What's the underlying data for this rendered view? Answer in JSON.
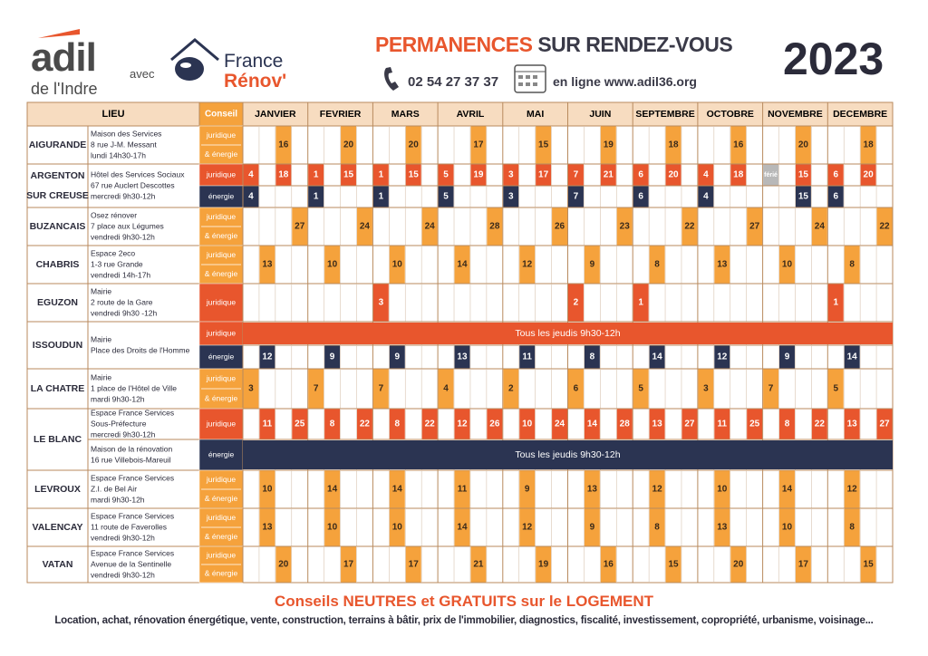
{
  "header": {
    "logo": "adil",
    "logo_sub": "de l'Indre",
    "with": "avec",
    "partner_a": "France",
    "partner_b": "Rénov'",
    "title_a": "PERMANENCES",
    "title_b": "SUR RENDEZ-VOUS",
    "phone": "02 54 27 37 37",
    "online": "en ligne www.adil36.org",
    "year": "2023"
  },
  "table": {
    "lieu": "LIEU",
    "conseil": "Conseil",
    "months": [
      "JANVIER",
      "FEVRIER",
      "MARS",
      "AVRIL",
      "MAI",
      "JUIN",
      "SEPTEMBRE",
      "OCTOBRE",
      "NOVEMBRE",
      "DECEMBRE"
    ],
    "rows": [
      {
        "lieu": [
          "AIGURANDE"
        ],
        "address": [
          "Maison des Services",
          "8 rue J-M. Messant",
          "lundi 14h30-17h"
        ],
        "sessions": [
          {
            "kind": "both",
            "conseil": [
              "juridique",
              "& énergie"
            ],
            "dates": [
              [
                16
              ],
              [
                20
              ],
              [
                20
              ],
              [
                17
              ],
              [
                15
              ],
              [
                19
              ],
              [
                18
              ],
              [
                16
              ],
              [
                20
              ],
              [
                18
              ]
            ]
          }
        ]
      },
      {
        "lieu": [
          "ARGENTON",
          "SUR CREUSE"
        ],
        "address": [
          "Hôtel des Services Sociaux",
          "67 rue Auclert Descottes",
          "mercredi 9h30-12h"
        ],
        "sessions": [
          {
            "kind": "juridique",
            "conseil": [
              "juridique"
            ],
            "dates": [
              [
                4,
                18
              ],
              [
                1,
                15
              ],
              [
                1,
                15
              ],
              [
                5,
                19
              ],
              [
                3,
                17
              ],
              [
                7,
                21
              ],
              [
                6,
                20
              ],
              [
                4,
                18
              ],
              [
                "férié",
                15
              ],
              [
                6,
                20
              ]
            ]
          },
          {
            "kind": "energie",
            "conseil": [
              "énergie"
            ],
            "dates": [
              [
                4
              ],
              [
                1
              ],
              [
                1
              ],
              [
                5
              ],
              [
                3
              ],
              [
                7
              ],
              [
                6
              ],
              [
                4
              ],
              [
                15
              ],
              [
                6
              ]
            ]
          }
        ]
      },
      {
        "lieu": [
          "BUZANCAIS"
        ],
        "address": [
          "Osez rénover",
          "7 place aux Légumes",
          "vendredi 9h30-12h"
        ],
        "sessions": [
          {
            "kind": "both",
            "conseil": [
              "juridique",
              "& énergie"
            ],
            "dates": [
              [
                27
              ],
              [
                24
              ],
              [
                24
              ],
              [
                28
              ],
              [
                26
              ],
              [
                23
              ],
              [
                22
              ],
              [
                27
              ],
              [
                24
              ],
              [
                22
              ]
            ]
          }
        ]
      },
      {
        "lieu": [
          "CHABRIS"
        ],
        "address": [
          "Espace 2eco",
          "1-3 rue Grande",
          "vendredi 14h-17h"
        ],
        "sessions": [
          {
            "kind": "both",
            "conseil": [
              "juridique",
              "& énergie"
            ],
            "dates": [
              [
                13
              ],
              [
                10
              ],
              [
                10
              ],
              [
                14
              ],
              [
                12
              ],
              [
                9
              ],
              [
                8
              ],
              [
                13
              ],
              [
                10
              ],
              [
                8
              ]
            ]
          }
        ]
      },
      {
        "lieu": [
          "EGUZON"
        ],
        "address": [
          "Mairie",
          "2 route de la Gare",
          "vendredi 9h30 -12h"
        ],
        "sessions": [
          {
            "kind": "juridique",
            "conseil": [
              "juridique"
            ],
            "dates": [
              [],
              [],
              [
                3
              ],
              [],
              [],
              [
                2
              ],
              [
                1
              ],
              [],
              [],
              [
                1
              ]
            ]
          }
        ]
      },
      {
        "lieu": [
          "ISSOUDUN"
        ],
        "address": [
          "Mairie",
          "Place des Droits de l'Homme"
        ],
        "sessions": [
          {
            "kind": "juridique",
            "conseil": [
              "juridique"
            ],
            "bar": "Tous les jeudis 9h30-12h"
          },
          {
            "kind": "energie",
            "conseil": [
              "énergie"
            ],
            "dates": [
              [
                12
              ],
              [
                9
              ],
              [
                9
              ],
              [
                13
              ],
              [
                11
              ],
              [
                8
              ],
              [
                14
              ],
              [
                12
              ],
              [
                9
              ],
              [
                14
              ]
            ]
          }
        ]
      },
      {
        "lieu": [
          "LA CHATRE"
        ],
        "address": [
          "Mairie",
          "1 place de l'Hôtel de Ville",
          "mardi 9h30-12h"
        ],
        "sessions": [
          {
            "kind": "both",
            "conseil": [
              "juridique",
              "& énergie"
            ],
            "dates": [
              [
                3
              ],
              [
                7
              ],
              [
                7
              ],
              [
                4
              ],
              [
                2
              ],
              [
                6
              ],
              [
                5
              ],
              [
                3
              ],
              [
                7
              ],
              [
                5
              ]
            ]
          }
        ]
      },
      {
        "lieu": [
          "LE BLANC"
        ],
        "sessions": [
          {
            "kind": "juridique",
            "conseil": [
              "juridique"
            ],
            "address": [
              "Espace France Services",
              "Sous-Préfecture",
              "mercredi 9h30-12h"
            ],
            "dates": [
              [
                11,
                25
              ],
              [
                8,
                22
              ],
              [
                8,
                22
              ],
              [
                12,
                26
              ],
              [
                10,
                24
              ],
              [
                14,
                28
              ],
              [
                13,
                27
              ],
              [
                11,
                25
              ],
              [
                8,
                22
              ],
              [
                13,
                27
              ]
            ]
          },
          {
            "kind": "energie",
            "conseil": [
              "énergie"
            ],
            "address": [
              "Maison de la rénovation",
              "16 rue Villebois-Mareuil"
            ],
            "bar": "Tous les jeudis 9h30-12h"
          }
        ]
      },
      {
        "lieu": [
          "LEVROUX"
        ],
        "address": [
          "Espace France Services",
          "Z.I. de Bel Air",
          "mardi 9h30-12h"
        ],
        "sessions": [
          {
            "kind": "both",
            "conseil": [
              "juridique",
              "& énergie"
            ],
            "dates": [
              [
                10
              ],
              [
                14
              ],
              [
                14
              ],
              [
                11
              ],
              [
                9
              ],
              [
                13
              ],
              [
                12
              ],
              [
                10
              ],
              [
                14
              ],
              [
                12
              ]
            ]
          }
        ]
      },
      {
        "lieu": [
          "VALENCAY"
        ],
        "address": [
          "Espace France Services",
          "11 route de Faverolles",
          "vendredi 9h30-12h"
        ],
        "sessions": [
          {
            "kind": "both",
            "conseil": [
              "juridique",
              "& énergie"
            ],
            "dates": [
              [
                13
              ],
              [
                10
              ],
              [
                10
              ],
              [
                14
              ],
              [
                12
              ],
              [
                9
              ],
              [
                8
              ],
              [
                13
              ],
              [
                10
              ],
              [
                8
              ]
            ]
          }
        ]
      },
      {
        "lieu": [
          "VATAN"
        ],
        "address": [
          "Espace France Services",
          "Avenue de la Sentinelle",
          "vendredi 9h30-12h"
        ],
        "sessions": [
          {
            "kind": "both",
            "conseil": [
              "juridique",
              "& énergie"
            ],
            "dates": [
              [
                20
              ],
              [
                17
              ],
              [
                17
              ],
              [
                21
              ],
              [
                19
              ],
              [
                16
              ],
              [
                15
              ],
              [
                20
              ],
              [
                17
              ],
              [
                15
              ]
            ]
          }
        ]
      }
    ]
  },
  "footer": {
    "tagline": "Conseils NEUTRES et GRATUITS sur le LOGEMENT",
    "topics": "Location, achat, rénovation énergétique, vente, construction, terrains à bâtir, prix de l'immobilier, diagnostics, fiscalité, investissement, copropriété, urbanisme, voisinage..."
  }
}
